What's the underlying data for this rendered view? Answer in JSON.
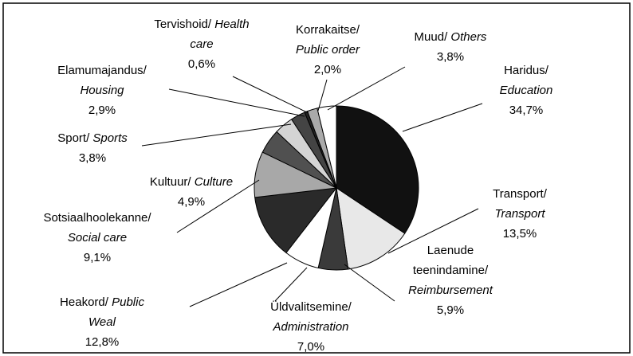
{
  "chart_data": {
    "type": "pie",
    "categories": [
      "Haridus/",
      "Transport/",
      "Laenude teenindamine/",
      "Üldvalitsemine/",
      "Heakord/",
      "Sotsiaalhoolekanne/",
      "Kultuur/",
      "Sport/",
      "Elamumajandus/",
      "Tervishoid/",
      "Korrakaitse/",
      "Muud/"
    ],
    "categories_en": [
      "Education",
      "Transport",
      "Reimbursement",
      "Administration",
      "Public Weal",
      "Social care",
      "Culture",
      "Sports",
      "Housing",
      "Health care",
      "Public order",
      "Others"
    ],
    "values": [
      34.7,
      13.5,
      5.9,
      7.0,
      12.8,
      9.1,
      4.9,
      3.8,
      2.9,
      0.6,
      2.0,
      3.8
    ],
    "value_labels": [
      "34,7%",
      "13,5%",
      "5,9%",
      "7,0%",
      "12,8%",
      "9,1%",
      "4,9%",
      "3,8%",
      "2,9%",
      "0,6%",
      "2,0%",
      "3,8%"
    ],
    "colors": [
      "#111111",
      "#e8e8e8",
      "#3a3a3a",
      "#ffffff",
      "#2a2a2a",
      "#a8a8a8",
      "#505050",
      "#d4d4d4",
      "#444444",
      "#222222",
      "#aaaaaa",
      "#ffffff"
    ]
  }
}
